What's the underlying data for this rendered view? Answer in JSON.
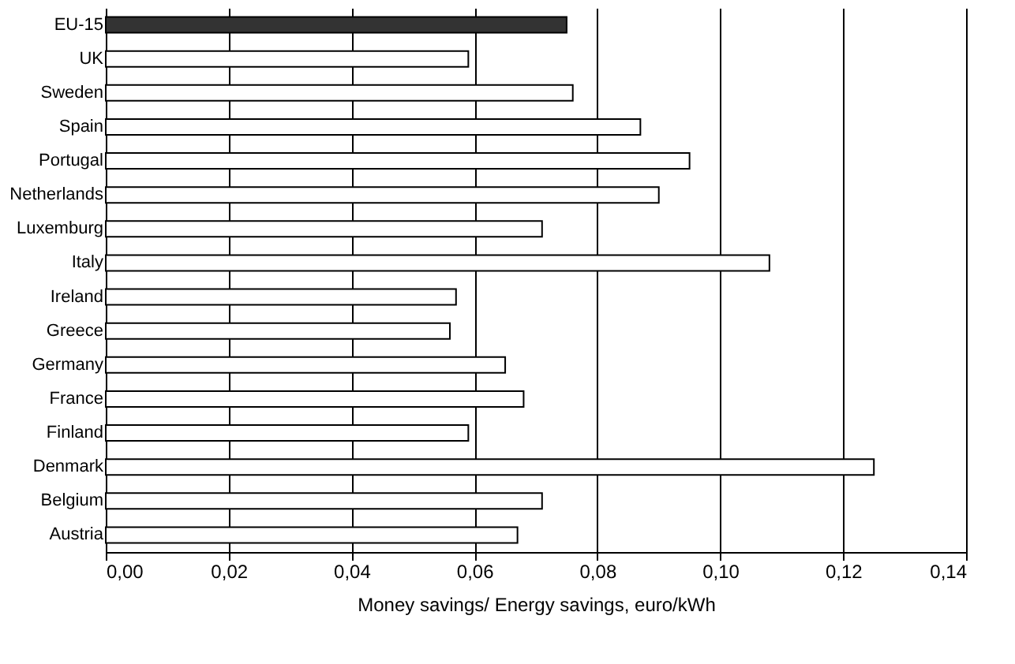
{
  "chart_data": {
    "type": "bar",
    "orientation": "horizontal",
    "xlabel": "Money savings/ Energy savings, euro/kWh",
    "categories": [
      "EU-15",
      "UK",
      "Sweden",
      "Spain",
      "Portugal",
      "Netherlands",
      "Luxemburg",
      "Italy",
      "Ireland",
      "Greece",
      "Germany",
      "France",
      "Finland",
      "Denmark",
      "Belgium",
      "Austria"
    ],
    "values": [
      0.075,
      0.059,
      0.076,
      0.087,
      0.095,
      0.09,
      0.071,
      0.108,
      0.057,
      0.056,
      0.065,
      0.068,
      0.059,
      0.125,
      0.071,
      0.067
    ],
    "colors": [
      "#333333",
      "#ffffff",
      "#ffffff",
      "#ffffff",
      "#ffffff",
      "#ffffff",
      "#ffffff",
      "#ffffff",
      "#ffffff",
      "#ffffff",
      "#ffffff",
      "#ffffff",
      "#ffffff",
      "#ffffff",
      "#ffffff",
      "#ffffff"
    ],
    "xlim": [
      0,
      0.14
    ],
    "xticks": [
      {
        "value": 0,
        "label": "0,00"
      },
      {
        "value": 0.02,
        "label": "0,02"
      },
      {
        "value": 0.04,
        "label": "0,04"
      },
      {
        "value": 0.06,
        "label": "0,06"
      },
      {
        "value": 0.08,
        "label": "0,08"
      },
      {
        "value": 0.1,
        "label": "0,10"
      },
      {
        "value": 0.12,
        "label": "0,12"
      },
      {
        "value": 0.14,
        "label": "0,14"
      }
    ],
    "grid": "x"
  }
}
